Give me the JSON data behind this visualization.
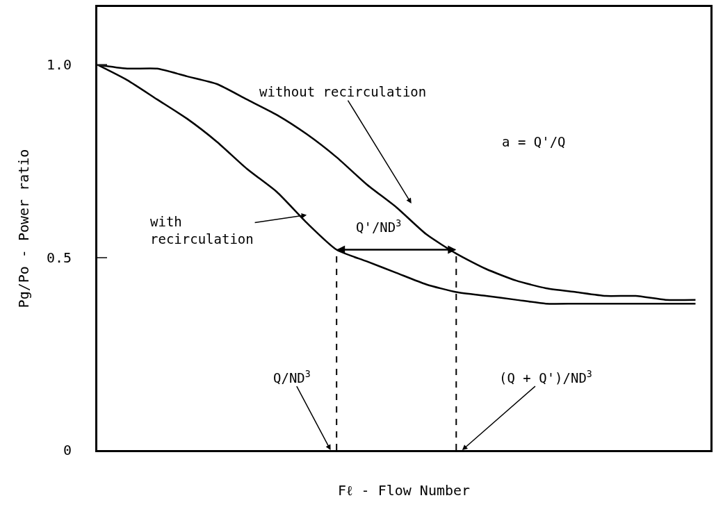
{
  "chart_data": {
    "type": "line",
    "xlabel": "Fℓ - Flow Number",
    "ylabel": "Pg/Po - Power ratio",
    "categories": [
      null,
      null,
      null,
      null,
      null,
      null,
      null,
      null,
      null,
      null,
      null,
      null,
      null,
      null,
      null,
      null,
      null,
      null,
      null,
      null,
      null
    ],
    "series": [
      {
        "color": "#000000",
        "values": [
          1.0,
          0.99,
          0.99,
          0.97,
          0.95,
          0.91,
          0.87,
          0.82,
          0.76,
          0.69,
          0.63,
          0.56,
          0.51,
          0.47,
          0.44,
          0.42,
          0.41,
          0.4,
          0.4,
          0.39,
          0.39
        ]
      },
      {
        "color": "#000000",
        "values": [
          1.0,
          0.96,
          0.91,
          0.86,
          0.8,
          0.73,
          0.67,
          0.59,
          0.52,
          0.49,
          0.46,
          0.43,
          0.41,
          0.4,
          0.39,
          0.38,
          0.38,
          0.38,
          0.38,
          0.38,
          0.38
        ]
      }
    ],
    "ylim": [
      0,
      1.15
    ],
    "yticks": [
      0,
      0.5,
      {
        "value": 1,
        "label": "1.0"
      }
    ],
    "annotations": [
      "without recirculation",
      "with\nrecirculation",
      "a = Q'/Q",
      "Q'/ND$^{3}$",
      "Q/ND$^{3}$",
      "(Q + Q')/ND$^{3}$"
    ],
    "legend": false,
    "marker": "none",
    "line_style": "solid"
  }
}
